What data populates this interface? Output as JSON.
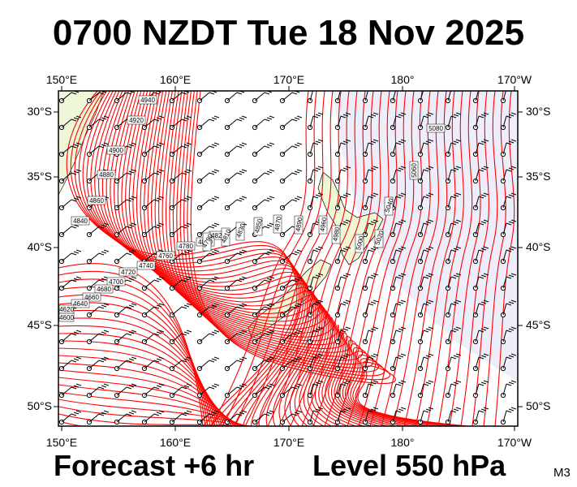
{
  "header": {
    "title": "0700 NZDT Tue 18 Nov 2025"
  },
  "footer": {
    "forecast": "Forecast +6 hr",
    "level": "Level 550 hPa",
    "tag": "M3"
  },
  "map": {
    "lon_labels": [
      "150°E",
      "160°E",
      "170°E",
      "180°",
      "170°W"
    ],
    "lat_labels": [
      "30°S",
      "35°S",
      "40°S",
      "45°S",
      "50°S"
    ],
    "colors": {
      "contour": "#ff0000",
      "land": "#eef8d8",
      "ocean_east": "#eeeefb",
      "ocean_west": "#ffffff"
    },
    "contour_labels": [
      "4940",
      "4920",
      "4900",
      "4880",
      "4860",
      "4840",
      "4820",
      "4800",
      "4780",
      "4760",
      "4740",
      "4720",
      "4700",
      "4680",
      "4660",
      "4640",
      "4620",
      "4600",
      "5080",
      "5060",
      "5040",
      "5020",
      "5000",
      "4980",
      "4960",
      "4890",
      "4870",
      "4850",
      "4830",
      "4810",
      "4790"
    ],
    "wind_barbs": "wind-barb-icon"
  }
}
